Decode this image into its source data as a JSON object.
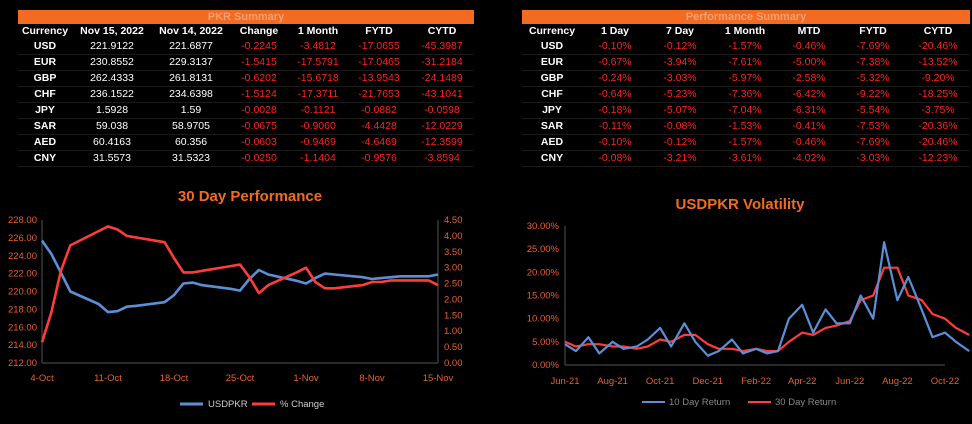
{
  "pkr_summary": {
    "title": "PKR Summary",
    "headers": [
      "Currency",
      "Nov 15, 2022",
      "Nov 14, 2022",
      "Change",
      "1 Month",
      "FYTD",
      "CYTD"
    ],
    "rows": [
      [
        "USD",
        "221.9122",
        "221.6877",
        "-0.2245",
        "-3.4812",
        "-17.0655",
        "-45.3987"
      ],
      [
        "EUR",
        "230.8552",
        "229.3137",
        "-1.5415",
        "-17.5791",
        "-17.0465",
        "-31.2184"
      ],
      [
        "GBP",
        "262.4333",
        "261.8131",
        "-0.6202",
        "-15.6718",
        "-13.9543",
        "-24.1489"
      ],
      [
        "CHF",
        "236.1522",
        "234.6398",
        "-1.5124",
        "-17.3711",
        "-21.7653",
        "-43.1041"
      ],
      [
        "JPY",
        "1.5928",
        "1.59",
        "-0.0028",
        "-0.1121",
        "-0.0882",
        "-0.0598"
      ],
      [
        "SAR",
        "59.038",
        "58.9705",
        "-0.0675",
        "-0.9060",
        "-4.4428",
        "-12.0229"
      ],
      [
        "AED",
        "60.4163",
        "60.356",
        "-0.0603",
        "-0.9469",
        "-4.6469",
        "-12.3599"
      ],
      [
        "CNY",
        "31.5573",
        "31.5323",
        "-0.0250",
        "-1.1404",
        "-0.9576",
        "-3.8594"
      ]
    ]
  },
  "performance_summary": {
    "title": "Performance Summary",
    "headers": [
      "Currency",
      "1 Day",
      "7 Day",
      "1 Month",
      "MTD",
      "FYTD",
      "CYTD"
    ],
    "rows": [
      [
        "USD",
        "-0.10%",
        "-0.12%",
        "-1.57%",
        "-0.46%",
        "-7.69%",
        "-20.46%"
      ],
      [
        "EUR",
        "-0.67%",
        "-3.94%",
        "-7.61%",
        "-5.00%",
        "-7.38%",
        "-13.52%"
      ],
      [
        "GBP",
        "-0.24%",
        "-3.03%",
        "-5.97%",
        "-2.58%",
        "-5.32%",
        "-9.20%"
      ],
      [
        "CHF",
        "-0.64%",
        "-5.23%",
        "-7.36%",
        "-6.42%",
        "-9.22%",
        "-18.25%"
      ],
      [
        "JPY",
        "-0.18%",
        "-5.07%",
        "-7.04%",
        "-6.31%",
        "-5.54%",
        "-3.75%"
      ],
      [
        "SAR",
        "-0.11%",
        "-0.08%",
        "-1.53%",
        "-0.41%",
        "-7.53%",
        "-20.36%"
      ],
      [
        "AED",
        "-0.10%",
        "-0.12%",
        "-1.57%",
        "-0.46%",
        "-7.69%",
        "-20.46%"
      ],
      [
        "CNY",
        "-0.08%",
        "-3.21%",
        "-3.61%",
        "-4.02%",
        "-3.03%",
        "-12.23%"
      ]
    ]
  },
  "colors": {
    "banner": "#f26b21",
    "banner_text": "#f4a072",
    "negative": "#ff2020",
    "chart_title": "#f26b21",
    "axis_text": "#e8612c",
    "series_blue": "#5b8fd6",
    "series_red": "#ff3b3b"
  },
  "chart_data": [
    {
      "type": "line",
      "title": "30 Day Performance",
      "x": [
        "2022-10-04",
        "2022-10-05",
        "2022-10-06",
        "2022-10-07",
        "2022-10-10",
        "2022-10-11",
        "2022-10-12",
        "2022-10-13",
        "2022-10-14",
        "2022-10-17",
        "2022-10-18",
        "2022-10-19",
        "2022-10-20",
        "2022-10-21",
        "2022-10-24",
        "2022-10-25",
        "2022-10-26",
        "2022-10-27",
        "2022-10-28",
        "2022-10-31",
        "2022-11-01",
        "2022-11-02",
        "2022-11-03",
        "2022-11-04",
        "2022-11-07",
        "2022-11-08",
        "2022-11-09",
        "2022-11-10",
        "2022-11-11",
        "2022-11-14",
        "2022-11-15"
      ],
      "x_ticks": [
        "4-Oct",
        "11-Oct",
        "18-Oct",
        "25-Oct",
        "1-Nov",
        "8-Nov",
        "15-Nov"
      ],
      "x_tick_dates": [
        "2022-10-04",
        "2022-10-11",
        "2022-10-18",
        "2022-10-25",
        "2022-11-01",
        "2022-11-08",
        "2022-11-15"
      ],
      "series": [
        {
          "name": "USDPKR",
          "axis": "left",
          "color": "#5b8fd6",
          "values": [
            225.7,
            224.2,
            222.1,
            220.0,
            218.6,
            217.7,
            217.8,
            218.3,
            218.4,
            218.8,
            219.6,
            220.9,
            221.0,
            220.7,
            220.3,
            220.1,
            221.4,
            222.4,
            221.9,
            221.2,
            220.9,
            221.5,
            222.0,
            221.9,
            221.6,
            221.4,
            221.5,
            221.6,
            221.7,
            221.7,
            221.9
          ]
        },
        {
          "name": "% Change",
          "axis": "right",
          "color": "#ff3b3b",
          "values": [
            0.65,
            1.6,
            2.9,
            3.7,
            4.15,
            4.3,
            4.2,
            4.0,
            3.95,
            3.8,
            3.3,
            2.85,
            2.85,
            2.9,
            3.05,
            3.1,
            2.7,
            2.2,
            2.45,
            2.85,
            3.0,
            2.55,
            2.35,
            2.35,
            2.45,
            2.55,
            2.55,
            2.6,
            2.6,
            2.6,
            2.45
          ]
        }
      ],
      "ylim_left": [
        212,
        228
      ],
      "yticks_left": [
        "212.00",
        "214.00",
        "216.00",
        "218.00",
        "220.00",
        "222.00",
        "224.00",
        "226.00",
        "228.00"
      ],
      "ylim_right": [
        0,
        4.5
      ],
      "yticks_right": [
        "0.00",
        "0.50",
        "1.00",
        "1.50",
        "2.00",
        "2.50",
        "3.00",
        "3.50",
        "4.00",
        "4.50"
      ],
      "legend": "bottom"
    },
    {
      "type": "line",
      "title": "USDPKR Volatility",
      "x_ticks": [
        "Jun-21",
        "Aug-21",
        "Oct-21",
        "Dec-21",
        "Feb-22",
        "Apr-22",
        "Jun-22",
        "Aug-22",
        "Oct-22"
      ],
      "x_tick_dates": [
        "2021-06",
        "2021-08",
        "2021-10",
        "2021-12",
        "2022-02",
        "2022-04",
        "2022-06",
        "2022-08",
        "2022-10"
      ],
      "series": [
        {
          "name": "10 Day Return",
          "color": "#5b8fd6",
          "x": [
            "2021-06",
            "2021-06-15",
            "2021-07",
            "2021-07-15",
            "2021-08",
            "2021-08-15",
            "2021-09",
            "2021-09-15",
            "2021-10",
            "2021-10-15",
            "2021-11",
            "2021-11-15",
            "2021-12",
            "2021-12-15",
            "2022-01",
            "2022-01-15",
            "2022-02",
            "2022-02-15",
            "2022-03",
            "2022-03-15",
            "2022-04",
            "2022-04-15",
            "2022-05",
            "2022-05-15",
            "2022-06",
            "2022-06-15",
            "2022-07",
            "2022-07-15",
            "2022-08",
            "2022-08-15",
            "2022-09",
            "2022-09-15",
            "2022-10",
            "2022-10-15",
            "2022-11"
          ],
          "values": [
            4.5,
            3.0,
            6.0,
            2.5,
            5.0,
            3.5,
            4.0,
            5.5,
            8.0,
            4.0,
            9.0,
            5.0,
            2.0,
            3.0,
            5.5,
            2.5,
            3.5,
            2.5,
            3.0,
            10.0,
            13.0,
            7.0,
            12.0,
            9.0,
            9.0,
            15.0,
            10.0,
            26.5,
            14.0,
            19.0,
            12.0,
            6.0,
            7.0,
            5.0,
            3.0
          ]
        },
        {
          "name": "30 Day Return",
          "color": "#ff3b3b",
          "x": [
            "2021-06",
            "2021-06-15",
            "2021-07",
            "2021-07-15",
            "2021-08",
            "2021-08-15",
            "2021-09",
            "2021-09-15",
            "2021-10",
            "2021-10-15",
            "2021-11",
            "2021-11-15",
            "2021-12",
            "2021-12-15",
            "2022-01",
            "2022-01-15",
            "2022-02",
            "2022-02-15",
            "2022-03",
            "2022-03-15",
            "2022-04",
            "2022-04-15",
            "2022-05",
            "2022-05-15",
            "2022-06",
            "2022-06-15",
            "2022-07",
            "2022-07-15",
            "2022-08",
            "2022-08-15",
            "2022-09",
            "2022-09-15",
            "2022-10",
            "2022-10-15",
            "2022-11"
          ],
          "values": [
            5.0,
            4.0,
            4.5,
            4.5,
            4.0,
            4.0,
            3.5,
            4.0,
            5.5,
            5.0,
            6.5,
            6.5,
            4.5,
            3.5,
            3.5,
            3.0,
            3.5,
            3.0,
            3.0,
            5.0,
            7.0,
            6.5,
            8.0,
            8.5,
            9.5,
            14.0,
            15.0,
            21.0,
            21.0,
            15.0,
            14.0,
            11.0,
            10.0,
            8.0,
            6.5
          ]
        }
      ],
      "ylim": [
        0,
        30
      ],
      "yticks": [
        "0.00%",
        "5.00%",
        "10.00%",
        "15.00%",
        "20.00%",
        "25.00%",
        "30.00%"
      ],
      "legend": "bottom"
    }
  ]
}
